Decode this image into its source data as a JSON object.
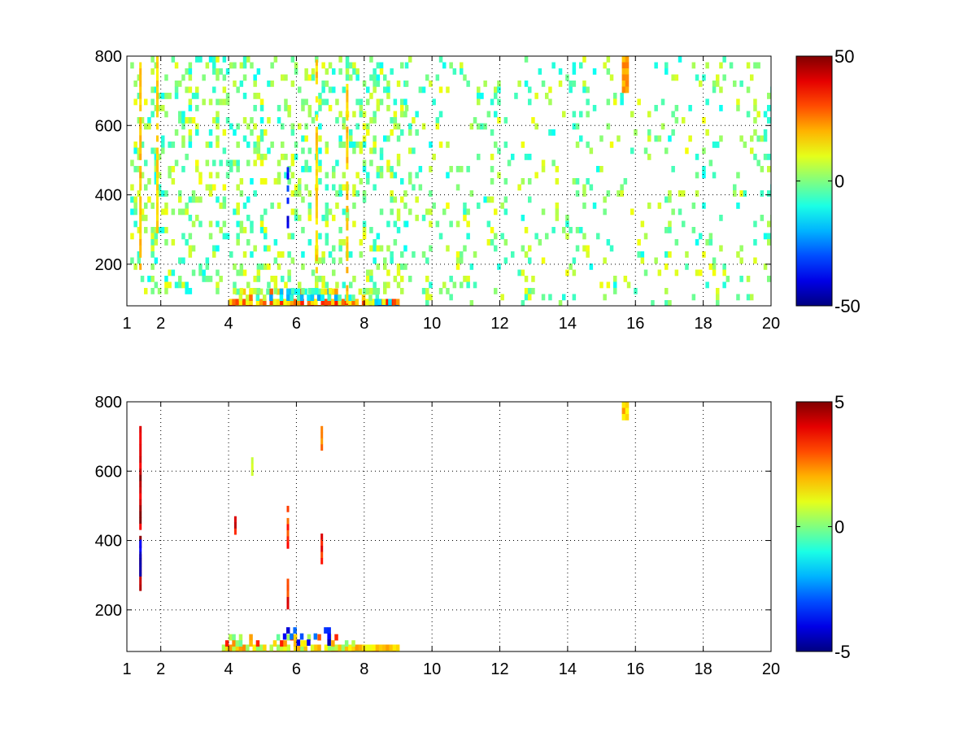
{
  "chart_data": [
    {
      "type": "heatmap",
      "title": "",
      "xlabel": "",
      "ylabel": "",
      "xlim": [
        1,
        20
      ],
      "ylim": [
        80,
        800
      ],
      "xticks": [
        1,
        2,
        4,
        6,
        8,
        10,
        12,
        14,
        16,
        18,
        20
      ],
      "yticks": [
        200,
        400,
        600,
        800
      ],
      "grid": true,
      "colormap": "jet",
      "clim": [
        -50,
        50
      ],
      "colorbar_ticks": [
        -50,
        0,
        50
      ],
      "background_color": "#ffffff",
      "blobs": [
        {
          "x": [
            4.0,
            9.0
          ],
          "y": [
            80,
            100
          ],
          "v": 22,
          "d": 0.85,
          "jitter": 14
        },
        {
          "x": [
            4.2,
            8.6
          ],
          "y": [
            100,
            130
          ],
          "v": 10,
          "d": 0.55,
          "jitter": 20
        },
        {
          "x": [
            8.0,
            9.0
          ],
          "y": [
            80,
            100
          ],
          "v": -22,
          "d": 0.6,
          "jitter": 8
        },
        {
          "x": [
            5.2,
            7.8
          ],
          "y": [
            95,
            130
          ],
          "v": -14,
          "d": 0.35,
          "jitter": 8
        },
        {
          "x": [
            1.1,
            9.2
          ],
          "y": [
            130,
            800
          ],
          "v": 0,
          "d": 0.22,
          "jitter": 12
        },
        {
          "x": [
            9.2,
            20
          ],
          "y": [
            80,
            800
          ],
          "v": 0,
          "d": 0.1,
          "jitter": 12
        },
        {
          "x": [
            15.6,
            15.8
          ],
          "y": [
            700,
            800
          ],
          "v": 22,
          "d": 1.0,
          "jitter": 4
        }
      ],
      "streaks": [
        {
          "x": 1.4,
          "y": [
            200,
            800
          ],
          "v": 18
        },
        {
          "x": 1.9,
          "y": [
            300,
            800
          ],
          "v": 16
        },
        {
          "x": 5.75,
          "y": [
            320,
            480
          ],
          "v": -35
        },
        {
          "x": 6.6,
          "y": [
            150,
            790
          ],
          "v": 17
        },
        {
          "x": 7.5,
          "y": [
            100,
            720
          ],
          "v": 18
        }
      ]
    },
    {
      "type": "heatmap",
      "title": "",
      "xlabel": "",
      "ylabel": "",
      "xlim": [
        1,
        20
      ],
      "ylim": [
        80,
        800
      ],
      "xticks": [
        1,
        2,
        4,
        6,
        8,
        10,
        12,
        14,
        16,
        18,
        20
      ],
      "yticks": [
        200,
        400,
        600,
        800
      ],
      "grid": true,
      "colormap": "jet",
      "clim": [
        -5,
        5
      ],
      "colorbar_ticks": [
        -5,
        0,
        5
      ],
      "background_color": "#ffffff",
      "blobs": [
        {
          "x": [
            3.8,
            9.0
          ],
          "y": [
            80,
            100
          ],
          "v": 1.2,
          "d": 0.85,
          "jitter": 1.2
        },
        {
          "x": [
            3.9,
            7.8
          ],
          "y": [
            100,
            130
          ],
          "v": 1.5,
          "d": 0.4,
          "jitter": 2.0
        },
        {
          "x": [
            5.4,
            7.0
          ],
          "y": [
            110,
            150
          ],
          "v": -3.5,
          "d": 0.3,
          "jitter": 1.0
        },
        {
          "x": [
            15.6,
            15.8
          ],
          "y": [
            750,
            800
          ],
          "v": 1.8,
          "d": 1.0,
          "jitter": 0.6
        }
      ],
      "streaks": [
        {
          "x": 1.4,
          "y": [
            240,
            730
          ],
          "v": 4.5
        },
        {
          "x": 1.4,
          "y": [
            300,
            420
          ],
          "v": -4.0
        },
        {
          "x": 5.75,
          "y": [
            210,
            290
          ],
          "v": 3.5
        },
        {
          "x": 5.75,
          "y": [
            380,
            500
          ],
          "v": 3.2
        },
        {
          "x": 6.75,
          "y": [
            330,
            420
          ],
          "v": 3.8
        },
        {
          "x": 6.75,
          "y": [
            670,
            730
          ],
          "v": 2.5
        },
        {
          "x": 4.7,
          "y": [
            600,
            640
          ],
          "v": 0.8
        },
        {
          "x": 4.2,
          "y": [
            430,
            470
          ],
          "v": 4.0
        }
      ]
    }
  ]
}
